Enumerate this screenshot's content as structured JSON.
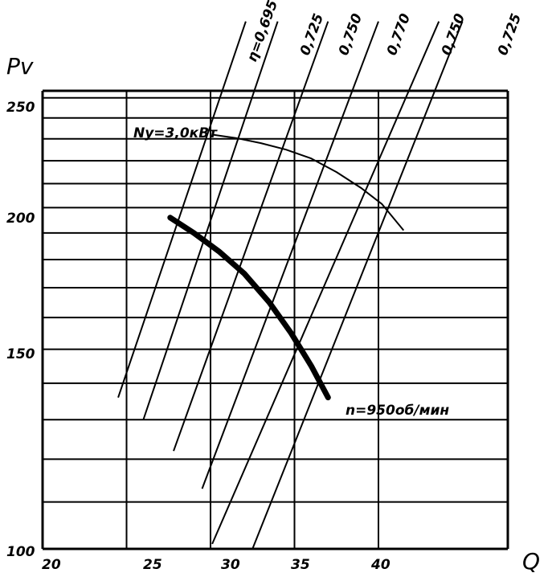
{
  "chart_data": {
    "type": "line",
    "title": "",
    "xlabel": "Q",
    "ylabel": "Pv",
    "xlim": [
      20,
      40
    ],
    "ylim": [
      100,
      250
    ],
    "x_ticks": [
      "20",
      "25",
      "30",
      "35",
      "40"
    ],
    "y_ticks": [
      "100",
      "150",
      "200",
      "250"
    ],
    "grid": true,
    "series": [
      {
        "name": "n=950об/мин",
        "style": "thick",
        "x": [
          27.6,
          29.0,
          30.5,
          32.0,
          33.5,
          34.8,
          36.0,
          37.0
        ],
        "y": [
          196,
          190,
          183,
          175,
          165,
          155,
          145,
          136
        ]
      },
      {
        "name": "Ny=3,0кВт",
        "style": "thin",
        "x": [
          30.1,
          31.5,
          33.0,
          34.5,
          36.0,
          37.5,
          39.0,
          40.2,
          41.5
        ],
        "y": [
          232,
          230.4,
          228,
          225,
          221,
          215,
          208,
          201.5,
          191
        ]
      }
    ],
    "efficiency_labels": [
      "η=0,695",
      "0,725",
      "0,750",
      "0,770",
      "0,750",
      "0,725"
    ],
    "efficiency_lines": [
      {
        "x": [
          24.5,
          32.1
        ],
        "y": [
          136,
          250
        ]
      },
      {
        "x": [
          26.0,
          34.0
        ],
        "y": [
          130,
          250
        ]
      },
      {
        "x": [
          27.8,
          37.0
        ],
        "y": [
          122,
          250
        ]
      },
      {
        "x": [
          29.5,
          40.0
        ],
        "y": [
          113,
          250
        ]
      },
      {
        "x": [
          30.1,
          43.6
        ],
        "y": [
          101,
          250
        ]
      },
      {
        "x": [
          32.5,
          45.0
        ],
        "y": [
          98,
          250
        ]
      }
    ],
    "annotations": [
      {
        "text": "Ny=3,0кВт",
        "x": 30.0,
        "y": 232
      },
      {
        "text": "n=950об/мин",
        "x": 37.0,
        "y": 134
      }
    ]
  }
}
